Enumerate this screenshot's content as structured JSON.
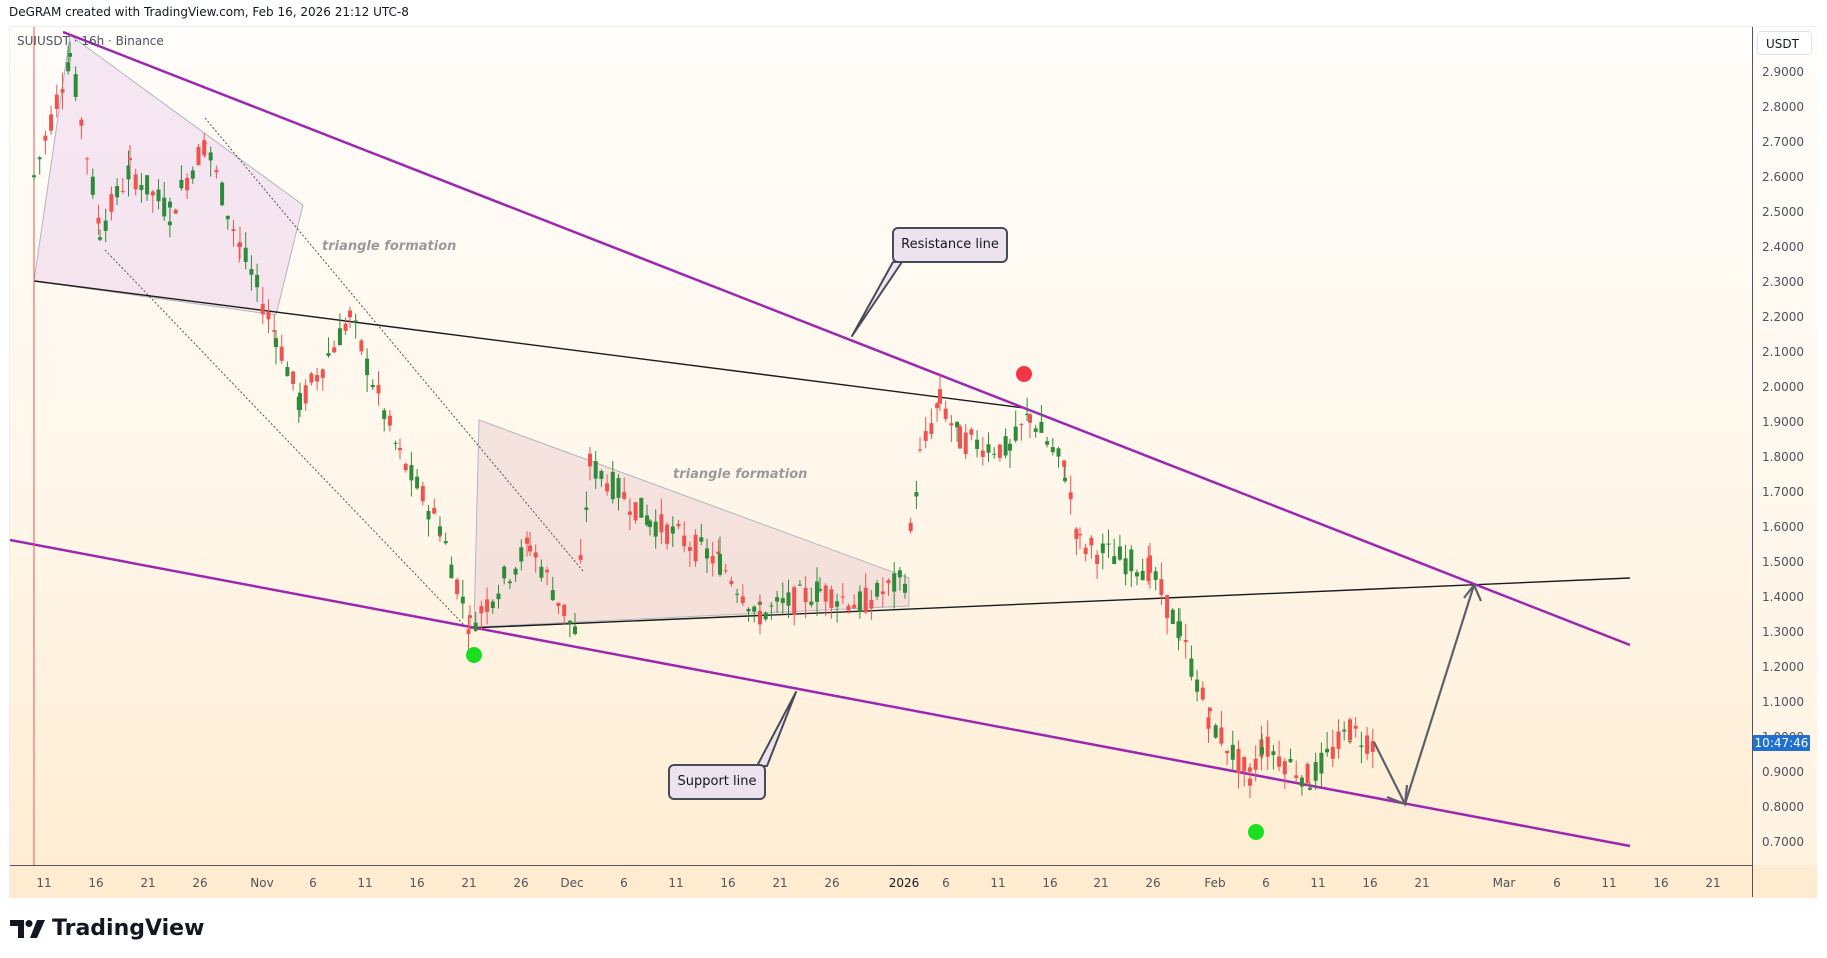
{
  "header": {
    "attribution": "DeGRAM created with TradingView.com, Feb 16, 2026 21:12 UTC-8"
  },
  "symbol": {
    "label": "SUIUSDT · 16h · Binance",
    "ticker": "SUIUSDT",
    "interval": "16h",
    "exchange": "Binance"
  },
  "price_axis": {
    "currency": "USDT",
    "ticks": [
      "2.9000",
      "2.8000",
      "2.7000",
      "2.6000",
      "2.5000",
      "2.4000",
      "2.3000",
      "2.2000",
      "2.1000",
      "2.0000",
      "1.9000",
      "1.8000",
      "1.7000",
      "1.6000",
      "1.5000",
      "1.4000",
      "1.3000",
      "1.2000",
      "1.1000",
      "1.0000",
      "0.9000",
      "0.8000",
      "0.7000"
    ],
    "countdown": "10:47:46"
  },
  "time_axis": {
    "ticks": [
      "11",
      "16",
      "21",
      "26",
      "Nov",
      "6",
      "11",
      "16",
      "21",
      "26",
      "Dec",
      "6",
      "11",
      "16",
      "21",
      "26",
      "2026",
      "6",
      "11",
      "16",
      "21",
      "26",
      "Feb",
      "6",
      "11",
      "16",
      "21",
      "Mar",
      "6",
      "11",
      "16",
      "21"
    ]
  },
  "annotations": {
    "resistance": "Resistance line",
    "support": "Support line",
    "triangle_1": "triangle formation",
    "triangle_2": "triangle formation"
  },
  "colors": {
    "up": "#2e8b3a",
    "down": "#ef5350",
    "trendline": "#9c27b0",
    "signal_buy": "#19e01f",
    "signal_sell": "#f23645",
    "countdown_bg": "#1f70d0"
  },
  "branding": {
    "logo_text": "TradingView"
  },
  "chart_data": {
    "type": "candlestick",
    "title": "SUIUSDT · 16h · Binance",
    "xlabel": "",
    "ylabel": "USDT",
    "ylim": [
      0.65,
      2.95
    ],
    "x_range": [
      "Oct 9, 2025",
      "Mar 24, 2026"
    ],
    "grid": false,
    "approx_price_path": [
      {
        "date": "Oct 10",
        "price": 2.95,
        "note": "high / crash wick to ~2.3"
      },
      {
        "date": "Oct 27",
        "price": 2.72
      },
      {
        "date": "Nov 3",
        "price": 2.15
      },
      {
        "date": "Nov 9",
        "price": 2.22
      },
      {
        "date": "Nov 21",
        "price": 1.32,
        "note": "low, green dot"
      },
      {
        "date": "Dec 1",
        "price": 1.79
      },
      {
        "date": "Dec 10",
        "price": 1.72
      },
      {
        "date": "Dec 18",
        "price": 1.34
      },
      {
        "date": "Jan 1",
        "price": 1.45
      },
      {
        "date": "Jan 6",
        "price": 2.02
      },
      {
        "date": "Jan 13",
        "price": 1.94,
        "note": "red dot (sell signal) ~2.03"
      },
      {
        "date": "Jan 26",
        "price": 1.45
      },
      {
        "date": "Feb 5",
        "price": 0.79,
        "note": "wick low, green dot"
      },
      {
        "date": "Feb 14",
        "price": 1.04
      },
      {
        "date": "Feb 16",
        "price": 0.98,
        "note": "last price"
      }
    ],
    "trendlines": [
      {
        "name": "Resistance line",
        "from": {
          "date": "Oct 12",
          "price": 2.95
        },
        "to": {
          "date": "Mar 12",
          "price": 1.26
        },
        "color": "#9c27b0"
      },
      {
        "name": "Support line",
        "from": {
          "date": "Oct 9",
          "price": 1.55
        },
        "to": {
          "date": "Mar 12",
          "price": 0.69
        },
        "color": "#9c27b0"
      },
      {
        "name": "Upper black line",
        "from": {
          "date": "Oct 10",
          "price": 2.31
        },
        "to": {
          "date": "Jan 13",
          "price": 1.94
        },
        "color": "#000000"
      },
      {
        "name": "Lower black line",
        "from": {
          "date": "Nov 21",
          "price": 1.31
        },
        "to": {
          "date": "Mar 12",
          "price": 1.45
        },
        "color": "#000000"
      }
    ],
    "projection": [
      {
        "date": "Feb 16",
        "price": 0.98
      },
      {
        "date": "Feb 19",
        "price": 0.81
      },
      {
        "date": "Feb 26",
        "price": 1.43
      }
    ],
    "signals": [
      {
        "date": "Nov 21",
        "price": 1.19,
        "type": "buy"
      },
      {
        "date": "Jan 14",
        "price": 2.03,
        "type": "sell"
      },
      {
        "date": "Feb 5",
        "price": 0.73,
        "type": "buy"
      }
    ],
    "annotations": [
      "Resistance line",
      "Support line",
      "triangle formation",
      "triangle formation"
    ]
  }
}
